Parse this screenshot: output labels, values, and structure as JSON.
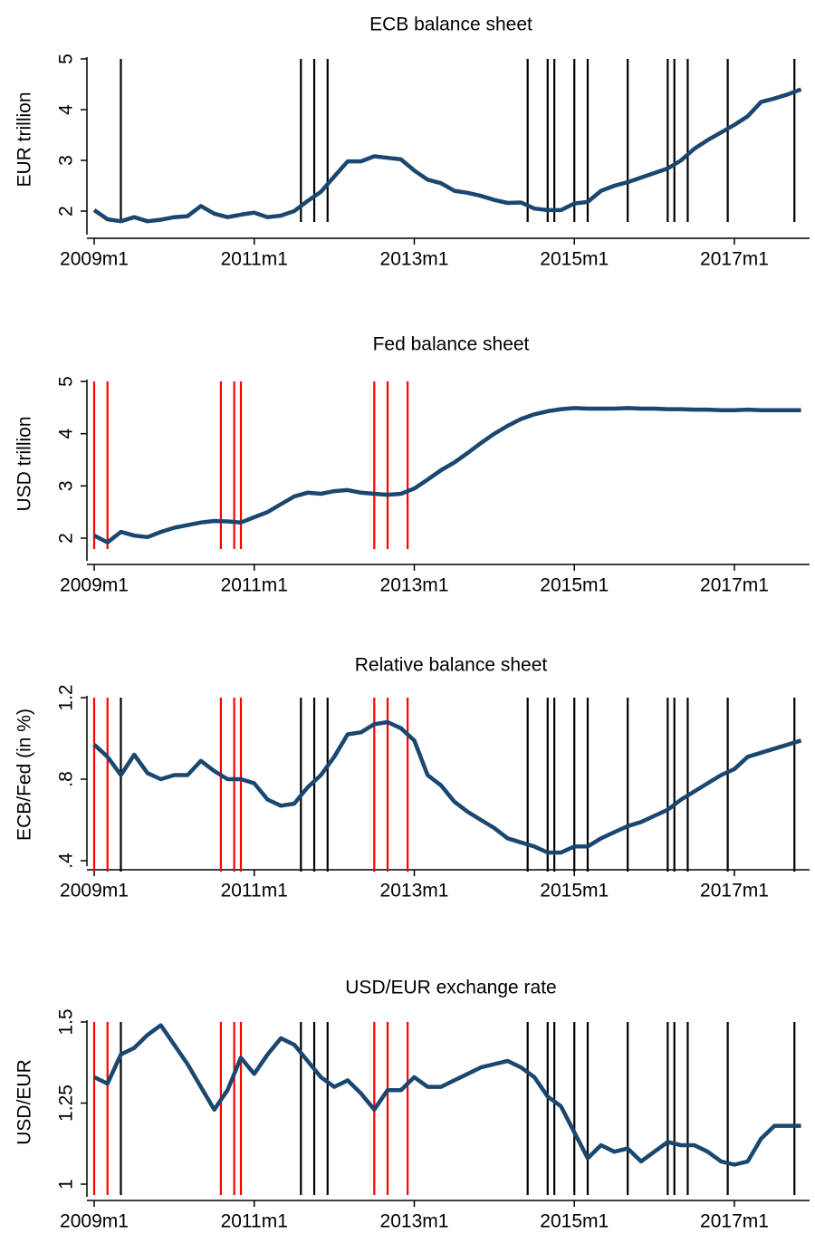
{
  "chart_data": [
    {
      "type": "line",
      "title": "ECB balance sheet",
      "y_label": "EUR trillion",
      "x": [
        "2009m1",
        "2009m3",
        "2009m5",
        "2009m7",
        "2009m9",
        "2009m11",
        "2010m1",
        "2010m3",
        "2010m5",
        "2010m7",
        "2010m9",
        "2010m11",
        "2011m1",
        "2011m3",
        "2011m5",
        "2011m7",
        "2011m9",
        "2011m11",
        "2012m1",
        "2012m3",
        "2012m5",
        "2012m7",
        "2012m9",
        "2012m11",
        "2013m1",
        "2013m3",
        "2013m5",
        "2013m7",
        "2013m9",
        "2013m11",
        "2014m1",
        "2014m3",
        "2014m5",
        "2014m7",
        "2014m9",
        "2014m11",
        "2015m1",
        "2015m3",
        "2015m5",
        "2015m7",
        "2015m9",
        "2015m11",
        "2016m1",
        "2016m3",
        "2016m5",
        "2016m7",
        "2016m9",
        "2016m11",
        "2017m1",
        "2017m3",
        "2017m5",
        "2017m7",
        "2017m9",
        "2017m11"
      ],
      "series": [
        {
          "color": "#1a476f",
          "values": [
            2.02,
            1.84,
            1.8,
            1.88,
            1.8,
            1.83,
            1.88,
            1.9,
            2.1,
            1.95,
            1.88,
            1.93,
            1.97,
            1.88,
            1.91,
            2.0,
            2.2,
            2.38,
            2.68,
            2.98,
            2.98,
            3.08,
            3.05,
            3.02,
            2.8,
            2.62,
            2.55,
            2.4,
            2.36,
            2.3,
            2.22,
            2.16,
            2.17,
            2.05,
            2.02,
            2.02,
            2.15,
            2.18,
            2.4,
            2.5,
            2.57,
            2.66,
            2.75,
            2.84,
            3.0,
            3.23,
            3.4,
            3.55,
            3.7,
            3.87,
            4.15,
            4.22,
            4.3,
            4.4
          ]
        }
      ],
      "vlines": [
        {
          "color": "#000000",
          "x": [
            "2009m5",
            "2011m8",
            "2011m10",
            "2011m12",
            "2014m6",
            "2014m9",
            "2014m10",
            "2015m1",
            "2015m3",
            "2015m9",
            "2016m3",
            "2016m4",
            "2016m6",
            "2016m12",
            "2017m10"
          ]
        }
      ],
      "xlim": [
        "2009m1",
        "2017m12"
      ],
      "xticks": [
        "2009m1",
        "2011m1",
        "2013m1",
        "2015m1",
        "2017m1"
      ],
      "ylim": [
        2,
        5
      ],
      "yticks": [
        2,
        3,
        4,
        5
      ]
    },
    {
      "type": "line",
      "title": "Fed balance sheet",
      "y_label": "USD trillion",
      "x": [
        "2009m1",
        "2009m3",
        "2009m5",
        "2009m7",
        "2009m9",
        "2009m11",
        "2010m1",
        "2010m3",
        "2010m5",
        "2010m7",
        "2010m9",
        "2010m11",
        "2011m1",
        "2011m3",
        "2011m5",
        "2011m7",
        "2011m9",
        "2011m11",
        "2012m1",
        "2012m3",
        "2012m5",
        "2012m7",
        "2012m9",
        "2012m11",
        "2013m1",
        "2013m3",
        "2013m5",
        "2013m7",
        "2013m9",
        "2013m11",
        "2014m1",
        "2014m3",
        "2014m5",
        "2014m7",
        "2014m9",
        "2014m11",
        "2015m1",
        "2015m3",
        "2015m5",
        "2015m7",
        "2015m9",
        "2015m11",
        "2016m1",
        "2016m3",
        "2016m5",
        "2016m7",
        "2016m9",
        "2016m11",
        "2017m1",
        "2017m3",
        "2017m5",
        "2017m7",
        "2017m9",
        "2017m11"
      ],
      "series": [
        {
          "color": "#1a476f",
          "values": [
            2.05,
            1.92,
            2.12,
            2.05,
            2.02,
            2.12,
            2.2,
            2.25,
            2.3,
            2.33,
            2.32,
            2.3,
            2.4,
            2.5,
            2.65,
            2.8,
            2.87,
            2.85,
            2.9,
            2.92,
            2.87,
            2.85,
            2.83,
            2.85,
            2.95,
            3.12,
            3.3,
            3.45,
            3.63,
            3.82,
            4.0,
            4.15,
            4.28,
            4.37,
            4.43,
            4.47,
            4.49,
            4.48,
            4.48,
            4.48,
            4.49,
            4.48,
            4.48,
            4.47,
            4.47,
            4.46,
            4.46,
            4.45,
            4.45,
            4.46,
            4.45,
            4.45,
            4.45,
            4.45
          ]
        }
      ],
      "vlines": [
        {
          "color": "#ff0000",
          "x": [
            "2009m1",
            "2009m3",
            "2010m8",
            "2010m10",
            "2010m11",
            "2012m7",
            "2012m9",
            "2012m12"
          ]
        }
      ],
      "xlim": [
        "2009m1",
        "2017m12"
      ],
      "xticks": [
        "2009m1",
        "2011m1",
        "2013m1",
        "2015m1",
        "2017m1"
      ],
      "ylim": [
        2,
        5
      ],
      "yticks": [
        2,
        3,
        4,
        5
      ]
    },
    {
      "type": "line",
      "title": "Relative balance sheet",
      "y_label": "ECB/Fed (in %)",
      "x": [
        "2009m1",
        "2009m3",
        "2009m5",
        "2009m7",
        "2009m9",
        "2009m11",
        "2010m1",
        "2010m3",
        "2010m5",
        "2010m7",
        "2010m9",
        "2010m11",
        "2011m1",
        "2011m3",
        "2011m5",
        "2011m7",
        "2011m9",
        "2011m11",
        "2012m1",
        "2012m3",
        "2012m5",
        "2012m7",
        "2012m9",
        "2012m11",
        "2013m1",
        "2013m3",
        "2013m5",
        "2013m7",
        "2013m9",
        "2013m11",
        "2014m1",
        "2014m3",
        "2014m5",
        "2014m7",
        "2014m9",
        "2014m11",
        "2015m1",
        "2015m3",
        "2015m5",
        "2015m7",
        "2015m9",
        "2015m11",
        "2016m1",
        "2016m3",
        "2016m5",
        "2016m7",
        "2016m9",
        "2016m11",
        "2017m1",
        "2017m3",
        "2017m5",
        "2017m7",
        "2017m9",
        "2017m11"
      ],
      "series": [
        {
          "color": "#1a476f",
          "values": [
            0.97,
            0.91,
            0.82,
            0.92,
            0.83,
            0.8,
            0.82,
            0.82,
            0.89,
            0.84,
            0.8,
            0.8,
            0.78,
            0.7,
            0.67,
            0.68,
            0.76,
            0.82,
            0.91,
            1.02,
            1.03,
            1.07,
            1.08,
            1.05,
            0.99,
            0.82,
            0.77,
            0.69,
            0.64,
            0.6,
            0.56,
            0.51,
            0.49,
            0.47,
            0.44,
            0.44,
            0.47,
            0.47,
            0.51,
            0.54,
            0.57,
            0.59,
            0.62,
            0.65,
            0.7,
            0.74,
            0.78,
            0.82,
            0.85,
            0.91,
            0.93,
            0.95,
            0.97,
            0.99
          ]
        }
      ],
      "vlines": [
        {
          "color": "#ff0000",
          "x": [
            "2009m1",
            "2009m3",
            "2010m8",
            "2010m10",
            "2010m11",
            "2012m7",
            "2012m9",
            "2012m12"
          ]
        },
        {
          "color": "#000000",
          "x": [
            "2009m5",
            "2011m8",
            "2011m10",
            "2011m12",
            "2014m6",
            "2014m9",
            "2014m10",
            "2015m1",
            "2015m3",
            "2015m9",
            "2016m3",
            "2016m4",
            "2016m6",
            "2016m12",
            "2017m10"
          ]
        }
      ],
      "xlim": [
        "2009m1",
        "2017m12"
      ],
      "xticks": [
        "2009m1",
        "2011m1",
        "2013m1",
        "2015m1",
        "2017m1"
      ],
      "ylim": [
        0.4,
        1.2
      ],
      "yticks": [
        {
          "value": 0.4,
          "label": ".4"
        },
        {
          "value": 0.8,
          "label": ".8"
        },
        1.2
      ]
    },
    {
      "type": "line",
      "title": "USD/EUR exchange rate",
      "y_label": "USD/EUR",
      "x": [
        "2009m1",
        "2009m3",
        "2009m5",
        "2009m7",
        "2009m9",
        "2009m11",
        "2010m1",
        "2010m3",
        "2010m5",
        "2010m7",
        "2010m9",
        "2010m11",
        "2011m1",
        "2011m3",
        "2011m5",
        "2011m7",
        "2011m9",
        "2011m11",
        "2012m1",
        "2012m3",
        "2012m5",
        "2012m7",
        "2012m9",
        "2012m11",
        "2013m1",
        "2013m3",
        "2013m5",
        "2013m7",
        "2013m9",
        "2013m11",
        "2014m1",
        "2014m3",
        "2014m5",
        "2014m7",
        "2014m9",
        "2014m11",
        "2015m1",
        "2015m3",
        "2015m5",
        "2015m7",
        "2015m9",
        "2015m11",
        "2016m1",
        "2016m3",
        "2016m5",
        "2016m7",
        "2016m9",
        "2016m11",
        "2017m1",
        "2017m3",
        "2017m5",
        "2017m7",
        "2017m9",
        "2017m11"
      ],
      "series": [
        {
          "color": "#1a476f",
          "values": [
            1.33,
            1.31,
            1.4,
            1.42,
            1.46,
            1.49,
            1.43,
            1.37,
            1.3,
            1.23,
            1.29,
            1.39,
            1.34,
            1.4,
            1.45,
            1.43,
            1.38,
            1.33,
            1.3,
            1.32,
            1.28,
            1.23,
            1.29,
            1.29,
            1.33,
            1.3,
            1.3,
            1.32,
            1.34,
            1.36,
            1.37,
            1.38,
            1.36,
            1.33,
            1.27,
            1.24,
            1.16,
            1.08,
            1.12,
            1.1,
            1.11,
            1.07,
            1.1,
            1.13,
            1.12,
            1.12,
            1.1,
            1.07,
            1.06,
            1.07,
            1.14,
            1.18,
            1.18,
            1.18
          ]
        }
      ],
      "vlines": [
        {
          "color": "#ff0000",
          "x": [
            "2009m1",
            "2009m3",
            "2010m8",
            "2010m10",
            "2010m11",
            "2012m7",
            "2012m9",
            "2012m12"
          ]
        },
        {
          "color": "#000000",
          "x": [
            "2009m5",
            "2011m8",
            "2011m10",
            "2011m12",
            "2014m6",
            "2014m9",
            "2014m10",
            "2015m1",
            "2015m3",
            "2015m9",
            "2016m3",
            "2016m4",
            "2016m6",
            "2016m12",
            "2017m10"
          ]
        }
      ],
      "xlim": [
        "2009m1",
        "2017m12"
      ],
      "xticks": [
        "2009m1",
        "2011m1",
        "2013m1",
        "2015m1",
        "2017m1"
      ],
      "ylim": [
        1,
        1.5
      ],
      "yticks": [
        1,
        1.25,
        1.5
      ]
    }
  ]
}
